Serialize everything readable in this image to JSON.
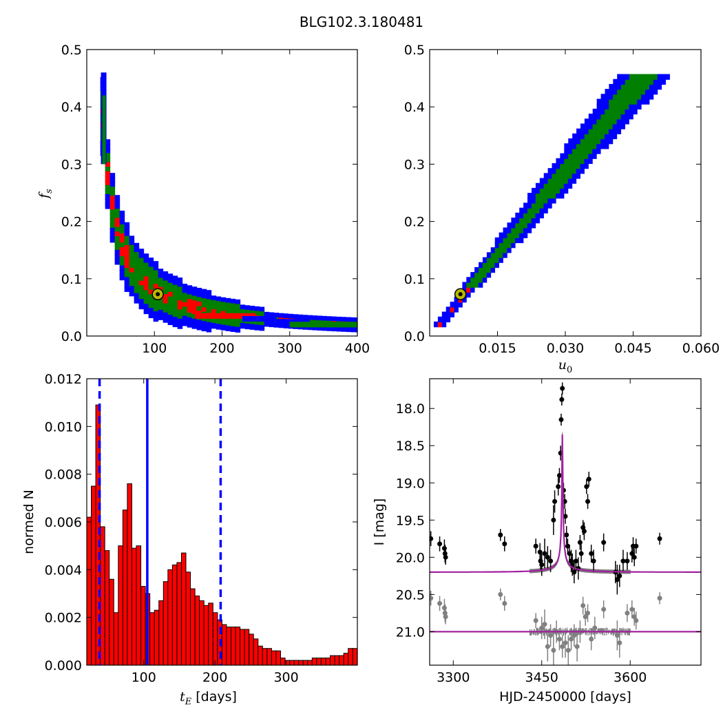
{
  "title": "BLG102.3.180481",
  "colors": {
    "blue": "#0000ff",
    "green": "#007f00",
    "red": "#ff0000",
    "black": "#000000",
    "magenta": "#a020a0",
    "gray": "#808080",
    "marker_fill": "#b8b800"
  },
  "chart_data": [
    {
      "id": "fs_vs_tE",
      "type": "heatmap",
      "xlabel": "",
      "ylabel": "f_s",
      "xlim": [
        0,
        400
      ],
      "ylim": [
        0,
        0.5
      ],
      "xticks": [
        "100",
        "200",
        "300",
        "400"
      ],
      "xtick_values": [
        100,
        200,
        300,
        400
      ],
      "yticks": [
        "0.0",
        "0.1",
        "0.2",
        "0.3",
        "0.4",
        "0.5"
      ],
      "ytick_values": [
        0,
        0.1,
        0.2,
        0.3,
        0.4,
        0.5
      ],
      "best_fit": {
        "x": 105,
        "y": 0.073
      }
    },
    {
      "id": "fs_vs_u0",
      "type": "heatmap",
      "xlabel": "u_0",
      "ylabel": "",
      "xlim": [
        0,
        0.06
      ],
      "ylim": [
        0,
        0.5
      ],
      "xticks": [
        "0.015",
        "0.030",
        "0.045",
        "0.060"
      ],
      "xtick_values": [
        0.015,
        0.03,
        0.045,
        0.06
      ],
      "yticks": [
        "0.0",
        "0.1",
        "0.2",
        "0.3",
        "0.4",
        "0.5"
      ],
      "ytick_values": [
        0,
        0.1,
        0.2,
        0.3,
        0.4,
        0.5
      ],
      "best_fit": {
        "x": 0.0068,
        "y": 0.073
      }
    },
    {
      "id": "tE_histogram",
      "type": "bar",
      "xlabel": "t_E  [days]",
      "ylabel": "normed N",
      "xlim": [
        20,
        400
      ],
      "ylim": [
        0,
        0.012
      ],
      "xticks": [
        "100",
        "200",
        "300"
      ],
      "xtick_values": [
        100,
        200,
        300
      ],
      "yticks": [
        "0.000",
        "0.002",
        "0.004",
        "0.006",
        "0.008",
        "0.010",
        "0.012"
      ],
      "ytick_values": [
        0,
        0.002,
        0.004,
        0.006,
        0.008,
        0.01,
        0.012
      ],
      "bin_start": 20,
      "bin_width": 6.33,
      "values": [
        0.0062,
        0.0075,
        0.0109,
        0.0058,
        0.0048,
        0.0036,
        0.0022,
        0.005,
        0.0065,
        0.0076,
        0.0049,
        0.005,
        0.0033,
        0.003,
        0.0022,
        0.0023,
        0.0027,
        0.0035,
        0.004,
        0.0042,
        0.0043,
        0.0047,
        0.0039,
        0.0032,
        0.0029,
        0.0027,
        0.0025,
        0.0026,
        0.0022,
        0.0019,
        0.0017,
        0.0016,
        0.0016,
        0.0016,
        0.0015,
        0.0015,
        0.0013,
        0.0011,
        0.0008,
        0.0007,
        0.0007,
        0.0006,
        0.0006,
        0.0003,
        0.0002,
        0.0002,
        0.0002,
        0.0002,
        0.0002,
        0.0002,
        0.0003,
        0.0003,
        0.0003,
        0.0003,
        0.0004,
        0.0004,
        0.0004,
        0.0005,
        0.0007,
        0.0007
      ],
      "vlines": [
        {
          "x": 38,
          "style": "dashed"
        },
        {
          "x": 105,
          "style": "solid"
        },
        {
          "x": 208,
          "style": "dashed"
        }
      ]
    },
    {
      "id": "light_curve",
      "type": "scatter",
      "xlabel": "HJD-2450000 [days]",
      "ylabel": "I [mag]",
      "xlim": [
        3260,
        3720
      ],
      "ylim": [
        21.45,
        17.6
      ],
      "xticks": [
        "3300",
        "3450",
        "3600"
      ],
      "xtick_values": [
        3300,
        3450,
        3600
      ],
      "yticks": [
        "18.0",
        "18.5",
        "19.0",
        "19.5",
        "20.0",
        "20.5",
        "21.0"
      ],
      "ytick_values": [
        18,
        18.5,
        19,
        19.5,
        20,
        20.5,
        21
      ],
      "model_peak": {
        "t0": 3485,
        "baseline": 20.2,
        "peak": 18.35
      },
      "series": [
        {
          "name": "",
          "color": "#000000",
          "points": [
            [
              3262,
              19.75,
              0.1
            ],
            [
              3277,
              19.82,
              0.1
            ],
            [
              3285,
              19.88,
              0.12
            ],
            [
              3286,
              19.95,
              0.12
            ],
            [
              3287,
              20.0,
              0.1
            ],
            [
              3380,
              19.7,
              0.08
            ],
            [
              3387,
              19.82,
              0.1
            ],
            [
              3440,
              19.85,
              0.1
            ],
            [
              3447,
              19.93,
              0.12
            ],
            [
              3448,
              20.05,
              0.12
            ],
            [
              3450,
              20.1,
              0.15
            ],
            [
              3455,
              19.95,
              0.2
            ],
            [
              3460,
              20.0,
              0.15
            ],
            [
              3465,
              20.05,
              0.15
            ],
            [
              3470,
              19.5,
              0.2
            ],
            [
              3472,
              19.25,
              0.15
            ],
            [
              3478,
              19.05,
              0.12
            ],
            [
              3480,
              18.9,
              0.1
            ],
            [
              3482,
              18.6,
              0.1
            ],
            [
              3483,
              18.15,
              0.08
            ],
            [
              3484,
              17.88,
              0.08
            ],
            [
              3485,
              17.73,
              0.08
            ],
            [
              3487,
              19.1,
              0.1
            ],
            [
              3489,
              19.25,
              0.1
            ],
            [
              3490,
              19.45,
              0.1
            ],
            [
              3492,
              19.7,
              0.12
            ],
            [
              3494,
              19.85,
              0.1
            ],
            [
              3497,
              19.95,
              0.12
            ],
            [
              3500,
              20.05,
              0.15
            ],
            [
              3502,
              20.1,
              0.15
            ],
            [
              3505,
              20.2,
              0.15
            ],
            [
              3508,
              20.05,
              0.15
            ],
            [
              3512,
              20.15,
              0.15
            ],
            [
              3515,
              19.8,
              0.1
            ],
            [
              3517,
              19.95,
              0.12
            ],
            [
              3520,
              19.6,
              0.1
            ],
            [
              3522,
              19.65,
              0.12
            ],
            [
              3526,
              19.05,
              0.1
            ],
            [
              3528,
              19.25,
              0.1
            ],
            [
              3530,
              18.95,
              0.1
            ],
            [
              3534,
              19.95,
              0.12
            ],
            [
              3538,
              20.05,
              0.15
            ],
            [
              3555,
              19.8,
              0.12
            ],
            [
              3575,
              20.2,
              0.15
            ],
            [
              3578,
              20.3,
              0.2
            ],
            [
              3582,
              20.25,
              0.15
            ],
            [
              3588,
              20.05,
              0.15
            ],
            [
              3595,
              20.05,
              0.12
            ],
            [
              3603,
              19.95,
              0.12
            ],
            [
              3605,
              19.85,
              0.12
            ],
            [
              3607,
              20.0,
              0.12
            ],
            [
              3610,
              19.85,
              0.1
            ],
            [
              3650,
              19.75,
              0.08
            ]
          ]
        },
        {
          "name": "",
          "color": "#808080",
          "points": [
            [
              3262,
              20.55,
              0.1
            ],
            [
              3277,
              20.62,
              0.1
            ],
            [
              3285,
              20.68,
              0.12
            ],
            [
              3286,
              20.75,
              0.12
            ],
            [
              3287,
              20.8,
              0.1
            ],
            [
              3380,
              20.5,
              0.08
            ],
            [
              3387,
              20.62,
              0.1
            ],
            [
              3440,
              20.85,
              0.1
            ],
            [
              3450,
              20.95,
              0.15
            ],
            [
              3455,
              20.9,
              0.2
            ],
            [
              3460,
              21.2,
              0.2
            ],
            [
              3465,
              21.05,
              0.15
            ],
            [
              3470,
              21.25,
              0.2
            ],
            [
              3475,
              21.0,
              0.15
            ],
            [
              3480,
              21.1,
              0.15
            ],
            [
              3485,
              21.2,
              0.15
            ],
            [
              3490,
              21.15,
              0.2
            ],
            [
              3495,
              21.25,
              0.2
            ],
            [
              3500,
              21.1,
              0.15
            ],
            [
              3505,
              21.05,
              0.15
            ],
            [
              3510,
              21.2,
              0.2
            ],
            [
              3515,
              21.0,
              0.15
            ],
            [
              3520,
              20.65,
              0.12
            ],
            [
              3524,
              20.8,
              0.12
            ],
            [
              3528,
              20.75,
              0.12
            ],
            [
              3534,
              21.1,
              0.15
            ],
            [
              3540,
              20.95,
              0.15
            ],
            [
              3555,
              20.7,
              0.12
            ],
            [
              3578,
              21.05,
              0.2
            ],
            [
              3582,
              21.15,
              0.2
            ],
            [
              3595,
              20.75,
              0.12
            ],
            [
              3603,
              20.7,
              0.12
            ],
            [
              3607,
              20.8,
              0.12
            ],
            [
              3610,
              20.85,
              0.12
            ],
            [
              3650,
              20.55,
              0.08
            ]
          ]
        }
      ]
    }
  ]
}
